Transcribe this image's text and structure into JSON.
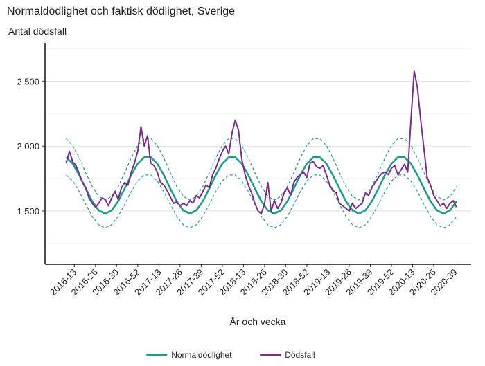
{
  "chart_data": {
    "type": "line",
    "title": "Normaldödlighet och faktisk dödlighet, Sverige",
    "y_label": "Antal dödsfall",
    "x_label": "År och vecka",
    "xlim": [
      -5,
      257
    ],
    "xticks": [
      {
        "value": 13,
        "label": "2016-13"
      },
      {
        "value": 26,
        "label": "2016-26"
      },
      {
        "value": 39,
        "label": "2016-39"
      },
      {
        "value": 52,
        "label": "2016-52"
      },
      {
        "value": 65,
        "label": "2017-13"
      },
      {
        "value": 78,
        "label": "2017-26"
      },
      {
        "value": 91,
        "label": "2017-39"
      },
      {
        "value": 104,
        "label": "2017-52"
      },
      {
        "value": 117,
        "label": "2018-13"
      },
      {
        "value": 130,
        "label": "2018-26"
      },
      {
        "value": 143,
        "label": "2018-39"
      },
      {
        "value": 156,
        "label": "2018-52"
      },
      {
        "value": 169,
        "label": "2019-13"
      },
      {
        "value": 182,
        "label": "2019-26"
      },
      {
        "value": 195,
        "label": "2019-39"
      },
      {
        "value": 208,
        "label": "2019-52"
      },
      {
        "value": 221,
        "label": "2020-13"
      },
      {
        "value": 234,
        "label": "2020-26"
      },
      {
        "value": 247,
        "label": "2020-39"
      }
    ],
    "ylim": [
      1090,
      2795
    ],
    "yticks": [
      {
        "value": 1500,
        "label": "1 500"
      },
      {
        "value": 2000,
        "label": "2 000"
      },
      {
        "value": 2500,
        "label": "2 500"
      }
    ],
    "yminor": [
      1250,
      1750,
      2250,
      2750
    ],
    "grid": true,
    "legend": "bottom",
    "series": [
      {
        "color": "#1a9e8a",
        "dash": true,
        "x": [
          8,
          12,
          16,
          20,
          24,
          28,
          32,
          36,
          40,
          44,
          48,
          52,
          56,
          60,
          64,
          68,
          72,
          76,
          80,
          84,
          88,
          92,
          96,
          100,
          104,
          108,
          112,
          116,
          120,
          124,
          128,
          132,
          136,
          140,
          144,
          148,
          152,
          156,
          160,
          164,
          168,
          172,
          176,
          180,
          184,
          188,
          192,
          196,
          200,
          204,
          208,
          212,
          216,
          220,
          224,
          228,
          232,
          236,
          240,
          244,
          248
        ],
        "values": [
          2058,
          2005,
          1910,
          1796,
          1689,
          1613,
          1585,
          1613,
          1689,
          1796,
          1910,
          2005,
          2058,
          2058,
          2005,
          1910,
          1796,
          1689,
          1613,
          1585,
          1613,
          1689,
          1796,
          1910,
          2005,
          2058,
          2058,
          2005,
          1910,
          1796,
          1689,
          1613,
          1585,
          1613,
          1689,
          1796,
          1910,
          2005,
          2058,
          2058,
          2005,
          1910,
          1796,
          1689,
          1613,
          1585,
          1613,
          1689,
          1796,
          1910,
          2005,
          2058,
          2058,
          2005,
          1910,
          1796,
          1689,
          1613,
          1585,
          1613,
          1689
        ]
      },
      {
        "color": "#1a9e8a",
        "dash": true,
        "x": [
          8,
          12,
          16,
          20,
          24,
          28,
          32,
          36,
          40,
          44,
          48,
          52,
          56,
          60,
          64,
          68,
          72,
          76,
          80,
          84,
          88,
          92,
          96,
          100,
          104,
          108,
          112,
          116,
          120,
          124,
          128,
          132,
          136,
          140,
          144,
          148,
          152,
          156,
          160,
          164,
          168,
          172,
          176,
          180,
          184,
          188,
          192,
          196,
          200,
          204,
          208,
          212,
          216,
          220,
          224,
          228,
          232,
          236,
          240,
          244,
          248
        ],
        "values": [
          1778,
          1732,
          1650,
          1552,
          1459,
          1394,
          1370,
          1394,
          1459,
          1552,
          1650,
          1732,
          1778,
          1778,
          1732,
          1650,
          1552,
          1459,
          1394,
          1370,
          1394,
          1459,
          1552,
          1650,
          1732,
          1778,
          1778,
          1732,
          1650,
          1552,
          1459,
          1394,
          1370,
          1394,
          1459,
          1552,
          1650,
          1732,
          1778,
          1778,
          1732,
          1650,
          1552,
          1459,
          1394,
          1370,
          1394,
          1459,
          1552,
          1650,
          1732,
          1778,
          1778,
          1732,
          1650,
          1552,
          1459,
          1394,
          1370,
          1394,
          1459
        ]
      },
      {
        "name": "Normaldödlighet",
        "color": "#1a9e8a",
        "width": 2.6,
        "x": [
          8,
          12,
          16,
          20,
          24,
          28,
          32,
          36,
          40,
          44,
          48,
          52,
          56,
          60,
          64,
          68,
          72,
          76,
          80,
          84,
          88,
          92,
          96,
          100,
          104,
          108,
          112,
          116,
          120,
          124,
          128,
          132,
          136,
          140,
          144,
          148,
          152,
          156,
          160,
          164,
          168,
          172,
          176,
          180,
          184,
          188,
          192,
          196,
          200,
          204,
          208,
          212,
          216,
          220,
          224,
          228,
          232,
          236,
          240,
          244,
          248
        ],
        "values": [
          1914,
          1865,
          1778,
          1674,
          1575,
          1505,
          1480,
          1505,
          1575,
          1674,
          1778,
          1865,
          1914,
          1914,
          1865,
          1778,
          1674,
          1575,
          1505,
          1480,
          1505,
          1575,
          1674,
          1778,
          1865,
          1914,
          1914,
          1865,
          1778,
          1674,
          1575,
          1505,
          1480,
          1505,
          1575,
          1674,
          1778,
          1865,
          1914,
          1914,
          1865,
          1778,
          1674,
          1575,
          1505,
          1480,
          1505,
          1575,
          1674,
          1778,
          1865,
          1914,
          1914,
          1865,
          1778,
          1674,
          1575,
          1505,
          1480,
          1505,
          1575
        ]
      },
      {
        "name": "Dödsfall",
        "color": "#7b2d8e",
        "width": 2,
        "x": [
          8,
          10,
          12,
          14,
          16,
          18,
          20,
          22,
          24,
          26,
          28,
          30,
          32,
          34,
          36,
          38,
          40,
          42,
          44,
          46,
          48,
          50,
          52,
          54,
          56,
          58,
          60,
          62,
          64,
          66,
          68,
          70,
          72,
          74,
          76,
          78,
          80,
          82,
          84,
          86,
          88,
          90,
          92,
          94,
          96,
          98,
          100,
          102,
          104,
          106,
          108,
          110,
          112,
          114,
          116,
          118,
          120,
          122,
          124,
          126,
          128,
          130,
          132,
          134,
          136,
          138,
          140,
          142,
          144,
          146,
          148,
          150,
          152,
          154,
          156,
          158,
          160,
          162,
          164,
          166,
          168,
          170,
          172,
          174,
          176,
          178,
          180,
          182,
          184,
          186,
          188,
          190,
          192,
          194,
          196,
          198,
          200,
          202,
          204,
          206,
          208,
          210,
          212,
          214,
          216,
          218,
          220,
          222,
          224,
          226,
          228,
          230,
          232,
          234,
          236,
          238,
          240,
          242,
          244,
          246,
          248
        ],
        "values": [
          1870,
          1960,
          1880,
          1850,
          1790,
          1720,
          1680,
          1600,
          1560,
          1530,
          1560,
          1600,
          1590,
          1540,
          1600,
          1650,
          1590,
          1680,
          1720,
          1700,
          1800,
          1870,
          1960,
          2150,
          2000,
          2080,
          1870,
          1850,
          1800,
          1720,
          1700,
          1660,
          1610,
          1560,
          1570,
          1540,
          1560,
          1540,
          1580,
          1560,
          1620,
          1600,
          1650,
          1700,
          1680,
          1780,
          1830,
          1900,
          1960,
          2000,
          1940,
          2100,
          2200,
          2120,
          1900,
          1780,
          1700,
          1640,
          1560,
          1500,
          1480,
          1560,
          1720,
          1500,
          1580,
          1520,
          1560,
          1640,
          1680,
          1620,
          1720,
          1760,
          1780,
          1800,
          1760,
          1870,
          1880,
          1840,
          1830,
          1850,
          1780,
          1700,
          1660,
          1640,
          1560,
          1540,
          1520,
          1500,
          1560,
          1520,
          1540,
          1560,
          1640,
          1620,
          1680,
          1720,
          1760,
          1790,
          1800,
          1780,
          1830,
          1850,
          1780,
          1820,
          1860,
          1800,
          2200,
          2580,
          2450,
          2200,
          1980,
          1760,
          1700,
          1620,
          1580,
          1540,
          1560,
          1520,
          1560,
          1580,
          1530
        ]
      }
    ]
  }
}
